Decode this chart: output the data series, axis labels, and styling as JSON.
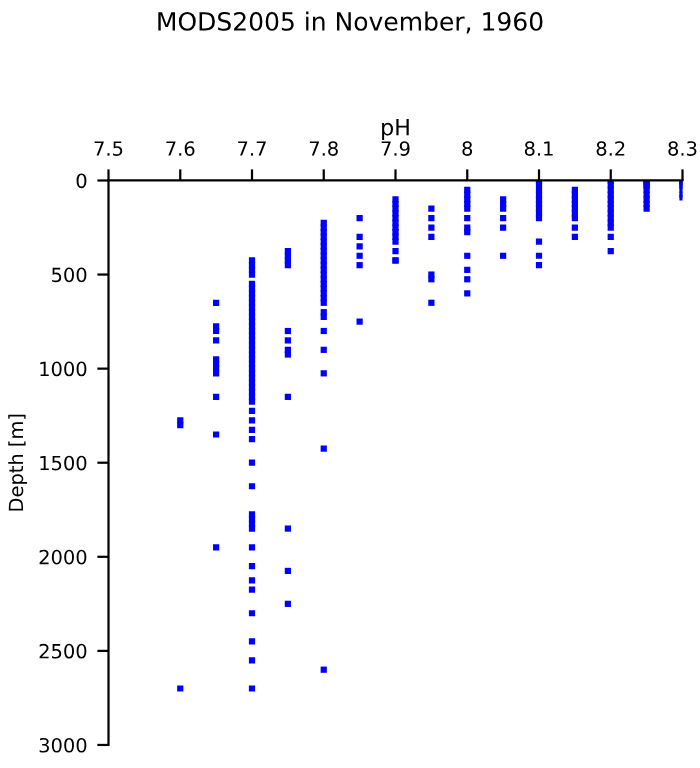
{
  "chart_data": {
    "type": "scatter",
    "title": "MODS2005 in November, 1960",
    "xlabel": "pH",
    "ylabel": "Depth [m]",
    "xlim": [
      7.5,
      8.3
    ],
    "xticks": [
      7.5,
      7.6,
      7.7,
      7.8,
      7.9,
      8,
      8.1,
      8.2,
      8.3
    ],
    "ylim": [
      3000,
      0
    ],
    "yticks": [
      0,
      500,
      1000,
      1500,
      2000,
      2500,
      3000
    ],
    "grid": false,
    "marker": "square",
    "series": [
      {
        "color": "#0000ff",
        "x": [
          8.3,
          8.3,
          8.3,
          8.3,
          8.3,
          8.3,
          8.3,
          8.25,
          8.25,
          8.25,
          8.25,
          8.25,
          8.25,
          8.25,
          8.25,
          8.25,
          8.2,
          8.2,
          8.2,
          8.2,
          8.2,
          8.2,
          8.2,
          8.2,
          8.2,
          8.2,
          8.2,
          8.2,
          8.2,
          8.15,
          8.15,
          8.15,
          8.15,
          8.15,
          8.15,
          8.15,
          8.15,
          8.15,
          8.1,
          8.1,
          8.1,
          8.1,
          8.1,
          8.1,
          8.1,
          8.1,
          8.1,
          8.1,
          8.1,
          8.1,
          8.05,
          8.05,
          8.05,
          8.05,
          8.05,
          8.05,
          8.0,
          8.0,
          8.0,
          8.0,
          8.0,
          8.0,
          8.0,
          8.0,
          8.0,
          8.0,
          8.0,
          8.0,
          7.95,
          7.95,
          7.95,
          7.95,
          7.95,
          7.95,
          7.95,
          7.9,
          7.9,
          7.9,
          7.9,
          7.9,
          7.9,
          7.9,
          7.9,
          7.9,
          7.9,
          7.9,
          7.9,
          7.9,
          7.85,
          7.85,
          7.85,
          7.85,
          7.85,
          7.85,
          7.8,
          7.8,
          7.8,
          7.8,
          7.8,
          7.8,
          7.8,
          7.8,
          7.8,
          7.8,
          7.8,
          7.8,
          7.8,
          7.8,
          7.8,
          7.8,
          7.8,
          7.8,
          7.8,
          7.8,
          7.8,
          7.8,
          7.8,
          7.8,
          7.8,
          7.75,
          7.75,
          7.75,
          7.75,
          7.75,
          7.75,
          7.75,
          7.75,
          7.75,
          7.75,
          7.75,
          7.75,
          7.7,
          7.7,
          7.7,
          7.7,
          7.7,
          7.7,
          7.7,
          7.7,
          7.7,
          7.7,
          7.7,
          7.7,
          7.7,
          7.7,
          7.7,
          7.7,
          7.7,
          7.7,
          7.7,
          7.7,
          7.7,
          7.7,
          7.7,
          7.7,
          7.7,
          7.7,
          7.7,
          7.7,
          7.7,
          7.7,
          7.7,
          7.7,
          7.7,
          7.7,
          7.7,
          7.7,
          7.7,
          7.7,
          7.7,
          7.7,
          7.7,
          7.7,
          7.7,
          7.7,
          7.7,
          7.7,
          7.7,
          7.7,
          7.65,
          7.65,
          7.65,
          7.65,
          7.65,
          7.65,
          7.65,
          7.65,
          7.65,
          7.65,
          7.65,
          7.6,
          7.6,
          7.6
        ],
        "values": [
          0,
          10,
          20,
          30,
          50,
          75,
          90,
          0,
          10,
          20,
          30,
          50,
          75,
          100,
          125,
          150,
          0,
          25,
          50,
          75,
          100,
          125,
          150,
          175,
          200,
          225,
          250,
          300,
          375,
          50,
          75,
          100,
          125,
          150,
          175,
          200,
          250,
          300,
          0,
          20,
          50,
          75,
          100,
          125,
          150,
          175,
          200,
          325,
          400,
          450,
          100,
          125,
          150,
          200,
          250,
          400,
          50,
          75,
          100,
          125,
          150,
          200,
          250,
          275,
          400,
          475,
          525,
          600,
          150,
          200,
          250,
          300,
          500,
          525,
          650,
          100,
          125,
          150,
          175,
          200,
          225,
          250,
          275,
          300,
          325,
          375,
          425,
          425,
          200,
          300,
          350,
          400,
          450,
          750,
          225,
          250,
          275,
          300,
          325,
          350,
          375,
          400,
          425,
          450,
          475,
          500,
          525,
          550,
          575,
          600,
          625,
          650,
          700,
          725,
          800,
          900,
          1025,
          1425,
          2600,
          375,
          400,
          425,
          450,
          800,
          850,
          900,
          925,
          1150,
          1850,
          2075,
          2250,
          425,
          450,
          475,
          500,
          550,
          600,
          650,
          700,
          750,
          800,
          850,
          875,
          900,
          950,
          1000,
          1050,
          1075,
          1100,
          1125,
          1175,
          1225,
          1275,
          1325,
          1375,
          1500,
          1625,
          1775,
          1800,
          1825,
          1850,
          1950,
          2050,
          2125,
          2175,
          2300,
          2450,
          2550,
          2700,
          575,
          625,
          675,
          725,
          775,
          825,
          925,
          975,
          1025,
          1150,
          650,
          775,
          800,
          850,
          950,
          975,
          1000,
          1025,
          1150,
          1350,
          1950,
          1275,
          1300,
          2700
        ]
      }
    ]
  }
}
